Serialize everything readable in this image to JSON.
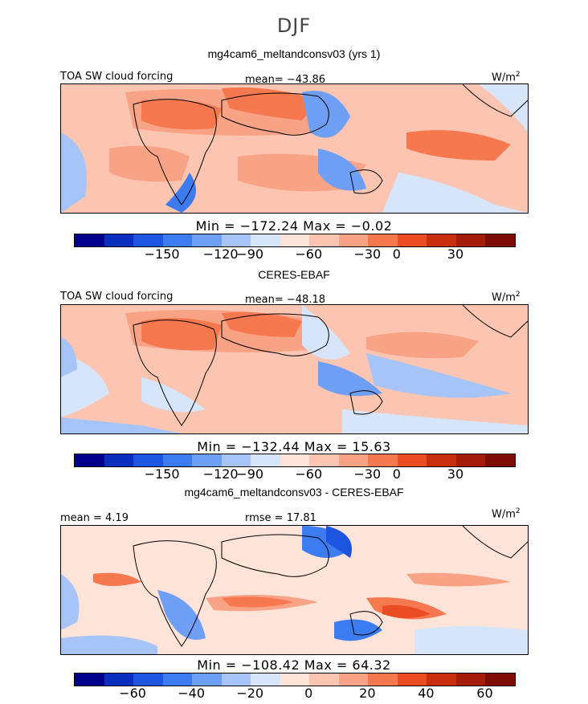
{
  "season": "DJF",
  "palette": [
    "#00008b",
    "#0a2fbe",
    "#1e55e0",
    "#3d7bf0",
    "#6f9ef5",
    "#a6c4f7",
    "#d6e5fa",
    "#fde3d8",
    "#fcc5b1",
    "#f9a386",
    "#f5784f",
    "#ea4d21",
    "#c92e0c",
    "#a41d08",
    "#7d0c04"
  ],
  "panels": [
    {
      "title": "mg4cam6_meltandconsv03 (yrs 1)",
      "left_label": "TOA SW cloud forcing",
      "center_label": "mean= −43.86",
      "units": "W/m",
      "units_sup": "2",
      "minmax": "Min = −172.24 Max =  −0.02",
      "ticks": [
        "−150",
        "−120",
        "−90",
        "−60",
        "−30",
        "0",
        "30"
      ]
    },
    {
      "title": "CERES-EBAF",
      "left_label": "TOA SW cloud forcing",
      "center_label": "mean= −48.18",
      "units": "W/m",
      "units_sup": "2",
      "minmax": "Min = −132.44 Max =  15.63",
      "ticks": [
        "−150",
        "−120",
        "−90",
        "−60",
        "−30",
        "0",
        "30"
      ]
    },
    {
      "title": "mg4cam6_meltandconsv03 - CERES-EBAF",
      "left_label": "mean =   4.19",
      "center_label": "rmse =  17.81",
      "units": "W/m",
      "units_sup": "2",
      "minmax": "Min = −108.42 Max =  64.32",
      "ticks": [
        "−60",
        "−40",
        "−20",
        "0",
        "20",
        "40",
        "60"
      ]
    }
  ]
}
